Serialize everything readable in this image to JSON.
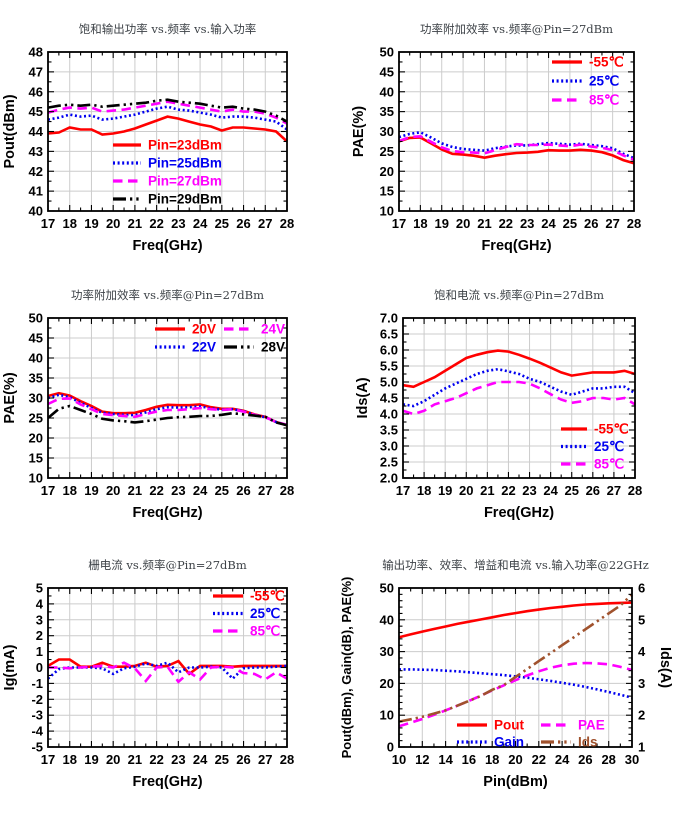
{
  "page": {
    "background": "#ffffff"
  },
  "colors": {
    "red": "#ff0000",
    "blue": "#0000f0",
    "magenta": "#ff00ff",
    "black": "#000000",
    "brown": "#a0522d",
    "grid": "#cccccc",
    "border": "#000000",
    "title_text": "#3d4247",
    "axis_text": "#000000"
  },
  "chart_data": [
    {
      "id": "pout-vs-freq-pin",
      "type": "line",
      "title": "饱和输出功率 vs.频率 vs.输入功率",
      "xlabel": "Freq(GHz)",
      "ylabel": "Pout(dBm)",
      "xlim": [
        17,
        28
      ],
      "xstep": 1,
      "xminor": 0.5,
      "ylim": [
        40,
        48
      ],
      "ystep": 1,
      "yminor": 0.5,
      "ydecimals": 0,
      "grid": true,
      "legend_position": "inside-bottom-center",
      "x": [
        17,
        17.5,
        18,
        18.5,
        19,
        19.5,
        20,
        20.5,
        21,
        21.5,
        22,
        22.5,
        23,
        23.5,
        24,
        24.5,
        25,
        25.5,
        26,
        26.5,
        27,
        27.5,
        28
      ],
      "series": [
        {
          "name": "Pin=23dBm",
          "color": "red",
          "style": "solid",
          "values": [
            43.9,
            43.95,
            44.2,
            44.1,
            44.1,
            43.85,
            43.9,
            44.0,
            44.15,
            44.35,
            44.55,
            44.75,
            44.65,
            44.5,
            44.35,
            44.25,
            44.05,
            44.2,
            44.2,
            44.15,
            44.1,
            44.0,
            43.5
          ]
        },
        {
          "name": "Pin=25dBm",
          "color": "blue",
          "style": "dotted",
          "values": [
            44.6,
            44.7,
            44.85,
            44.75,
            44.8,
            44.6,
            44.65,
            44.75,
            44.85,
            45.0,
            45.15,
            45.25,
            45.1,
            45.05,
            44.95,
            44.85,
            44.7,
            44.75,
            44.75,
            44.7,
            44.6,
            44.5,
            44.1
          ]
        },
        {
          "name": "Pin=27dBm",
          "color": "magenta",
          "style": "dashed",
          "values": [
            44.95,
            45.1,
            45.2,
            45.15,
            45.2,
            45.0,
            45.05,
            45.1,
            45.2,
            45.3,
            45.4,
            45.5,
            45.4,
            45.3,
            45.2,
            45.1,
            45.0,
            45.1,
            45.0,
            45.0,
            44.9,
            44.7,
            44.4
          ]
        },
        {
          "name": "Pin=29dBm",
          "color": "black",
          "style": "dashdotdot",
          "values": [
            45.2,
            45.3,
            45.35,
            45.3,
            45.35,
            45.25,
            45.3,
            45.35,
            45.4,
            45.45,
            45.55,
            45.6,
            45.5,
            45.45,
            45.4,
            45.3,
            45.2,
            45.25,
            45.15,
            45.1,
            45.0,
            44.8,
            44.5
          ]
        }
      ]
    },
    {
      "id": "pae-vs-freq-temp",
      "type": "line",
      "title": "功率附加效率 vs.频率@Pin=27dBm",
      "xlabel": "Freq(GHz)",
      "ylabel": "PAE(%)",
      "xlim": [
        17,
        28
      ],
      "xstep": 1,
      "xminor": 0.5,
      "ylim": [
        10,
        50
      ],
      "ystep": 5,
      "yminor": 2.5,
      "ydecimals": 0,
      "grid": true,
      "legend_position": "inside-top-right",
      "x": [
        17,
        17.5,
        18,
        18.5,
        19,
        19.5,
        20,
        20.5,
        21,
        21.5,
        22,
        22.5,
        23,
        23.5,
        24,
        24.5,
        25,
        25.5,
        26,
        26.5,
        27,
        27.5,
        28
      ],
      "series": [
        {
          "name": "-55℃",
          "color": "red",
          "style": "solid",
          "values": [
            27.5,
            28.4,
            28.5,
            27.0,
            25.5,
            24.4,
            24.2,
            23.9,
            23.4,
            23.9,
            24.3,
            24.6,
            24.7,
            24.9,
            25.3,
            25.2,
            25.2,
            25.4,
            25.2,
            24.8,
            24.0,
            22.8,
            22.0
          ]
        },
        {
          "name": "25℃",
          "color": "blue",
          "style": "dotted",
          "values": [
            28.6,
            29.4,
            29.8,
            28.5,
            27.0,
            26.1,
            25.6,
            25.4,
            25.2,
            25.8,
            26.2,
            26.5,
            26.5,
            26.8,
            27.1,
            26.9,
            26.7,
            26.9,
            26.6,
            26.3,
            25.8,
            24.4,
            23.3
          ]
        },
        {
          "name": "85℃",
          "color": "magenta",
          "style": "dashed",
          "values": [
            27.6,
            28.6,
            28.8,
            27.4,
            26.0,
            25.1,
            24.8,
            24.7,
            24.5,
            25.3,
            26.1,
            26.8,
            26.6,
            26.6,
            26.7,
            26.5,
            26.3,
            26.7,
            26.2,
            25.9,
            25.3,
            24.0,
            22.9
          ]
        }
      ]
    },
    {
      "id": "pae-vs-freq-vdrain",
      "type": "line",
      "title": "功率附加效率 vs.频率@Pin=27dBm",
      "xlabel": "Freq(GHz)",
      "ylabel": "PAE(%)",
      "xlim": [
        17,
        28
      ],
      "xstep": 1,
      "xminor": 0.5,
      "ylim": [
        10,
        50
      ],
      "ystep": 5,
      "yminor": 2.5,
      "ydecimals": 0,
      "grid": true,
      "legend_position": "inside-top-center-2col",
      "x": [
        17,
        17.5,
        18,
        18.5,
        19,
        19.5,
        20,
        20.5,
        21,
        21.5,
        22,
        22.5,
        23,
        23.5,
        24,
        24.5,
        25,
        25.5,
        26,
        26.5,
        27,
        27.5,
        28
      ],
      "series": [
        {
          "name": "20V",
          "color": "red",
          "style": "solid",
          "values": [
            30.5,
            31.2,
            30.6,
            29.2,
            28.0,
            26.6,
            26.2,
            26.2,
            26.3,
            27.0,
            27.8,
            28.3,
            28.2,
            28.2,
            28.4,
            27.7,
            27.3,
            27.3,
            26.8,
            25.9,
            25.3,
            24.0,
            23.2
          ]
        },
        {
          "name": "22V",
          "color": "blue",
          "style": "dotted",
          "values": [
            30.0,
            30.8,
            30.2,
            28.8,
            27.5,
            26.3,
            26.0,
            25.8,
            25.7,
            26.4,
            27.2,
            27.7,
            27.6,
            27.7,
            27.9,
            27.4,
            27.1,
            27.2,
            26.7,
            25.8,
            25.2,
            24.0,
            23.2
          ]
        },
        {
          "name": "24V",
          "color": "magenta",
          "style": "dashed",
          "values": [
            28.5,
            29.8,
            29.9,
            28.4,
            27.2,
            26.0,
            25.7,
            25.5,
            25.3,
            26.0,
            26.6,
            27.0,
            27.0,
            27.2,
            27.5,
            27.2,
            27.0,
            27.2,
            26.6,
            25.8,
            25.2,
            24.0,
            23.3
          ]
        },
        {
          "name": "28V",
          "color": "black",
          "style": "dashdotdot",
          "values": [
            25.0,
            27.3,
            28.0,
            27.0,
            26.0,
            24.8,
            24.4,
            24.2,
            23.9,
            24.2,
            24.6,
            25.0,
            25.2,
            25.3,
            25.5,
            25.5,
            25.8,
            26.2,
            25.9,
            25.6,
            25.3,
            23.9,
            23.2
          ]
        }
      ]
    },
    {
      "id": "ids-vs-freq-temp",
      "type": "line",
      "title": "饱和电流 vs.频率@Pin=27dBm",
      "xlabel": "Freq(GHz)",
      "ylabel": "Ids(A)",
      "xlim": [
        17,
        28
      ],
      "xstep": 1,
      "xminor": 0.5,
      "ylim": [
        2.0,
        7.0
      ],
      "ystep": 0.5,
      "yminor": 0.25,
      "ydecimals": 1,
      "grid": true,
      "legend_position": "inside-bottom-right",
      "x": [
        17,
        17.5,
        18,
        18.5,
        19,
        19.5,
        20,
        20.5,
        21,
        21.5,
        22,
        22.5,
        23,
        23.5,
        24,
        24.5,
        25,
        25.5,
        26,
        26.5,
        27,
        27.5,
        28
      ],
      "series": [
        {
          "name": "-55℃",
          "color": "red",
          "style": "solid",
          "values": [
            4.9,
            4.85,
            5.0,
            5.15,
            5.35,
            5.55,
            5.75,
            5.85,
            5.93,
            5.98,
            5.95,
            5.85,
            5.73,
            5.6,
            5.45,
            5.3,
            5.2,
            5.25,
            5.3,
            5.3,
            5.3,
            5.35,
            5.25
          ]
        },
        {
          "name": "25℃",
          "color": "blue",
          "style": "dotted",
          "values": [
            4.3,
            4.25,
            4.4,
            4.6,
            4.8,
            4.95,
            5.1,
            5.25,
            5.35,
            5.4,
            5.33,
            5.25,
            5.1,
            5.0,
            4.85,
            4.7,
            4.6,
            4.7,
            4.8,
            4.8,
            4.85,
            4.85,
            4.65
          ]
        },
        {
          "name": "85℃",
          "color": "magenta",
          "style": "dashed",
          "values": [
            4.1,
            4.0,
            4.1,
            4.3,
            4.4,
            4.5,
            4.65,
            4.8,
            4.9,
            5.0,
            5.0,
            5.0,
            4.95,
            4.8,
            4.62,
            4.45,
            4.35,
            4.4,
            4.5,
            4.5,
            4.45,
            4.5,
            4.3
          ]
        }
      ]
    },
    {
      "id": "ig-vs-freq-temp",
      "type": "line",
      "title": "栅电流 vs.频率@Pin=27dBm",
      "xlabel": "Freq(GHz)",
      "ylabel": "Ig(mA)",
      "xlim": [
        17,
        28
      ],
      "xstep": 1,
      "xminor": 0.5,
      "ylim": [
        -5,
        5
      ],
      "ystep": 1,
      "yminor": 0.5,
      "ydecimals": 0,
      "grid": true,
      "legend_position": "inside-top-right",
      "x": [
        17,
        17.5,
        18,
        18.5,
        19,
        19.5,
        20,
        20.5,
        21,
        21.5,
        22,
        22.5,
        23,
        23.5,
        24,
        24.5,
        25,
        25.5,
        26,
        26.5,
        27,
        27.5,
        28
      ],
      "series": [
        {
          "name": "-55℃",
          "color": "red",
          "style": "solid",
          "values": [
            0.1,
            0.5,
            0.5,
            0.05,
            0.05,
            0.3,
            0.05,
            0.05,
            0.1,
            0.3,
            0.05,
            0.1,
            0.4,
            -0.4,
            0.1,
            0.1,
            0.1,
            0.05,
            0.1,
            0.1,
            0.1,
            0.1,
            0.1
          ]
        },
        {
          "name": "25℃",
          "color": "blue",
          "style": "dotted",
          "values": [
            -0.7,
            -0.1,
            0.0,
            0.0,
            0.0,
            -0.05,
            -0.4,
            -0.05,
            0.05,
            0.25,
            0.1,
            0.3,
            -0.3,
            0.0,
            0.0,
            0.05,
            0.0,
            -0.7,
            -0.05,
            0.0,
            0.0,
            0.05,
            0.1
          ]
        },
        {
          "name": "85℃",
          "color": "magenta",
          "style": "dashed",
          "values": [
            0.0,
            0.0,
            -0.05,
            0.0,
            0.05,
            0.1,
            0.0,
            0.3,
            -0.05,
            -0.85,
            0.0,
            0.05,
            -0.9,
            -0.3,
            -0.75,
            0.0,
            0.05,
            0.0,
            -0.35,
            -0.4,
            -0.75,
            -0.3,
            -0.7
          ]
        }
      ]
    },
    {
      "id": "sweep-vs-pin-22ghz",
      "type": "line",
      "title": "输出功率、效率、增益和电流 vs.输入功率@22GHz",
      "xlabel": "Pin(dBm)",
      "ylabel": "Pout(dBm), Gain(dB), PAE(%)",
      "ylabel_right": "Ids(A)",
      "xlim": [
        10,
        30
      ],
      "xstep": 2,
      "xminor": 1,
      "ylim": [
        0,
        50
      ],
      "ystep": 10,
      "yminor": 2,
      "ydecimals": 0,
      "y2lim": [
        1,
        6
      ],
      "y2step": 1,
      "y2minor": 0.2,
      "y2decimals": 0,
      "grid": true,
      "legend_position": "inside-bottom-center-2col",
      "x": [
        10,
        11,
        12,
        13,
        14,
        15,
        16,
        17,
        18,
        19,
        20,
        21,
        22,
        23,
        24,
        25,
        26,
        27,
        28,
        29,
        30
      ],
      "series": [
        {
          "name": "Pout",
          "color": "red",
          "style": "solid",
          "values": [
            34.5,
            35.4,
            36.3,
            37.1,
            37.9,
            38.7,
            39.4,
            40.1,
            40.8,
            41.5,
            42.1,
            42.7,
            43.2,
            43.7,
            44.1,
            44.5,
            44.8,
            45.0,
            45.2,
            45.3,
            45.4
          ]
        },
        {
          "name": "Gain",
          "color": "blue",
          "style": "dotted",
          "values": [
            24.4,
            24.4,
            24.3,
            24.2,
            24.0,
            23.8,
            23.5,
            23.2,
            22.9,
            22.6,
            22.2,
            21.8,
            21.3,
            20.8,
            20.2,
            19.6,
            18.9,
            18.1,
            17.3,
            16.4,
            15.5
          ]
        },
        {
          "name": "PAE",
          "color": "magenta",
          "style": "dashed",
          "values": [
            6.5,
            7.6,
            8.8,
            10.1,
            11.5,
            13.0,
            14.5,
            16.1,
            17.8,
            19.4,
            21.0,
            22.5,
            23.8,
            24.9,
            25.7,
            26.2,
            26.4,
            26.3,
            26.0,
            25.2,
            24.2
          ]
        },
        {
          "name": "Ids",
          "color": "brown",
          "style": "dashdotdot",
          "axis": "right",
          "values": [
            1.8,
            1.87,
            1.95,
            2.05,
            2.15,
            2.3,
            2.45,
            2.6,
            2.8,
            2.95,
            3.2,
            3.45,
            3.7,
            3.95,
            4.2,
            4.45,
            4.7,
            4.95,
            5.2,
            5.45,
            5.8
          ]
        }
      ]
    }
  ]
}
